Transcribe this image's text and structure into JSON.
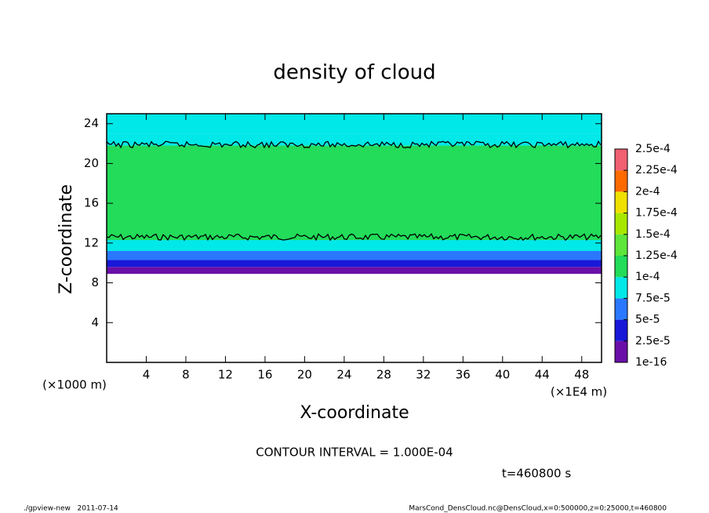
{
  "chart_data": {
    "type": "contour",
    "title": "density of cloud",
    "x_label": "X-coordinate",
    "y_label": "Z-coordinate",
    "x_unit": "(×1E4 m)",
    "y_unit": "(×1000 m)",
    "xlim": [
      0,
      50
    ],
    "xticks": [
      4,
      8,
      12,
      16,
      20,
      24,
      28,
      32,
      36,
      40,
      44,
      48
    ],
    "ylim": [
      0,
      25
    ],
    "yticks": [
      4,
      8,
      12,
      16,
      20,
      24
    ],
    "levels": [
      1e-16,
      {
        "value": 2.5e-05,
        "label": "2.5e-5"
      },
      {
        "value": 5e-05,
        "label": "5e-5"
      },
      {
        "value": 7.5e-05,
        "label": "7.5e-5"
      },
      {
        "value": 0.0001,
        "label": "1e-4"
      },
      {
        "value": 0.000125,
        "label": "1.25e-4"
      },
      {
        "value": 0.00015,
        "label": "1.5e-4"
      },
      {
        "value": 0.000175,
        "label": "1.75e-4"
      },
      {
        "value": 0.0002,
        "label": "2e-4"
      },
      {
        "value": 0.000225,
        "label": "2.25e-4"
      },
      {
        "value": 0.00025,
        "label": "2.5e-4"
      }
    ],
    "colors": [
      "#6a10a8",
      "#1818d8",
      "#2a78ff",
      "#00e8e8",
      "#22dc5a",
      "#5ee63a",
      "#a8e800",
      "#f0e000",
      "#ff6a00",
      "#f06070"
    ],
    "field": {
      "z": [
        8.9,
        9.6,
        10.3,
        11.2,
        12.3,
        21.8,
        23.0
      ],
      "values": [
        1e-05,
        3.5e-05,
        6e-05,
        8.5e-05,
        0.00011,
        9e-05,
        8e-05
      ]
    },
    "contour_z": [
      12.6,
      21.9
    ],
    "contour_interval": "CONTOUR INTERVAL = 1.000E-04",
    "time": "t=460800 s",
    "footer_left": "./gpview-new   2011-07-14",
    "footer_right": "MarsCond_DensCloud.nc@DensCloud,x=0:500000,z=0:25000,t=460800"
  }
}
